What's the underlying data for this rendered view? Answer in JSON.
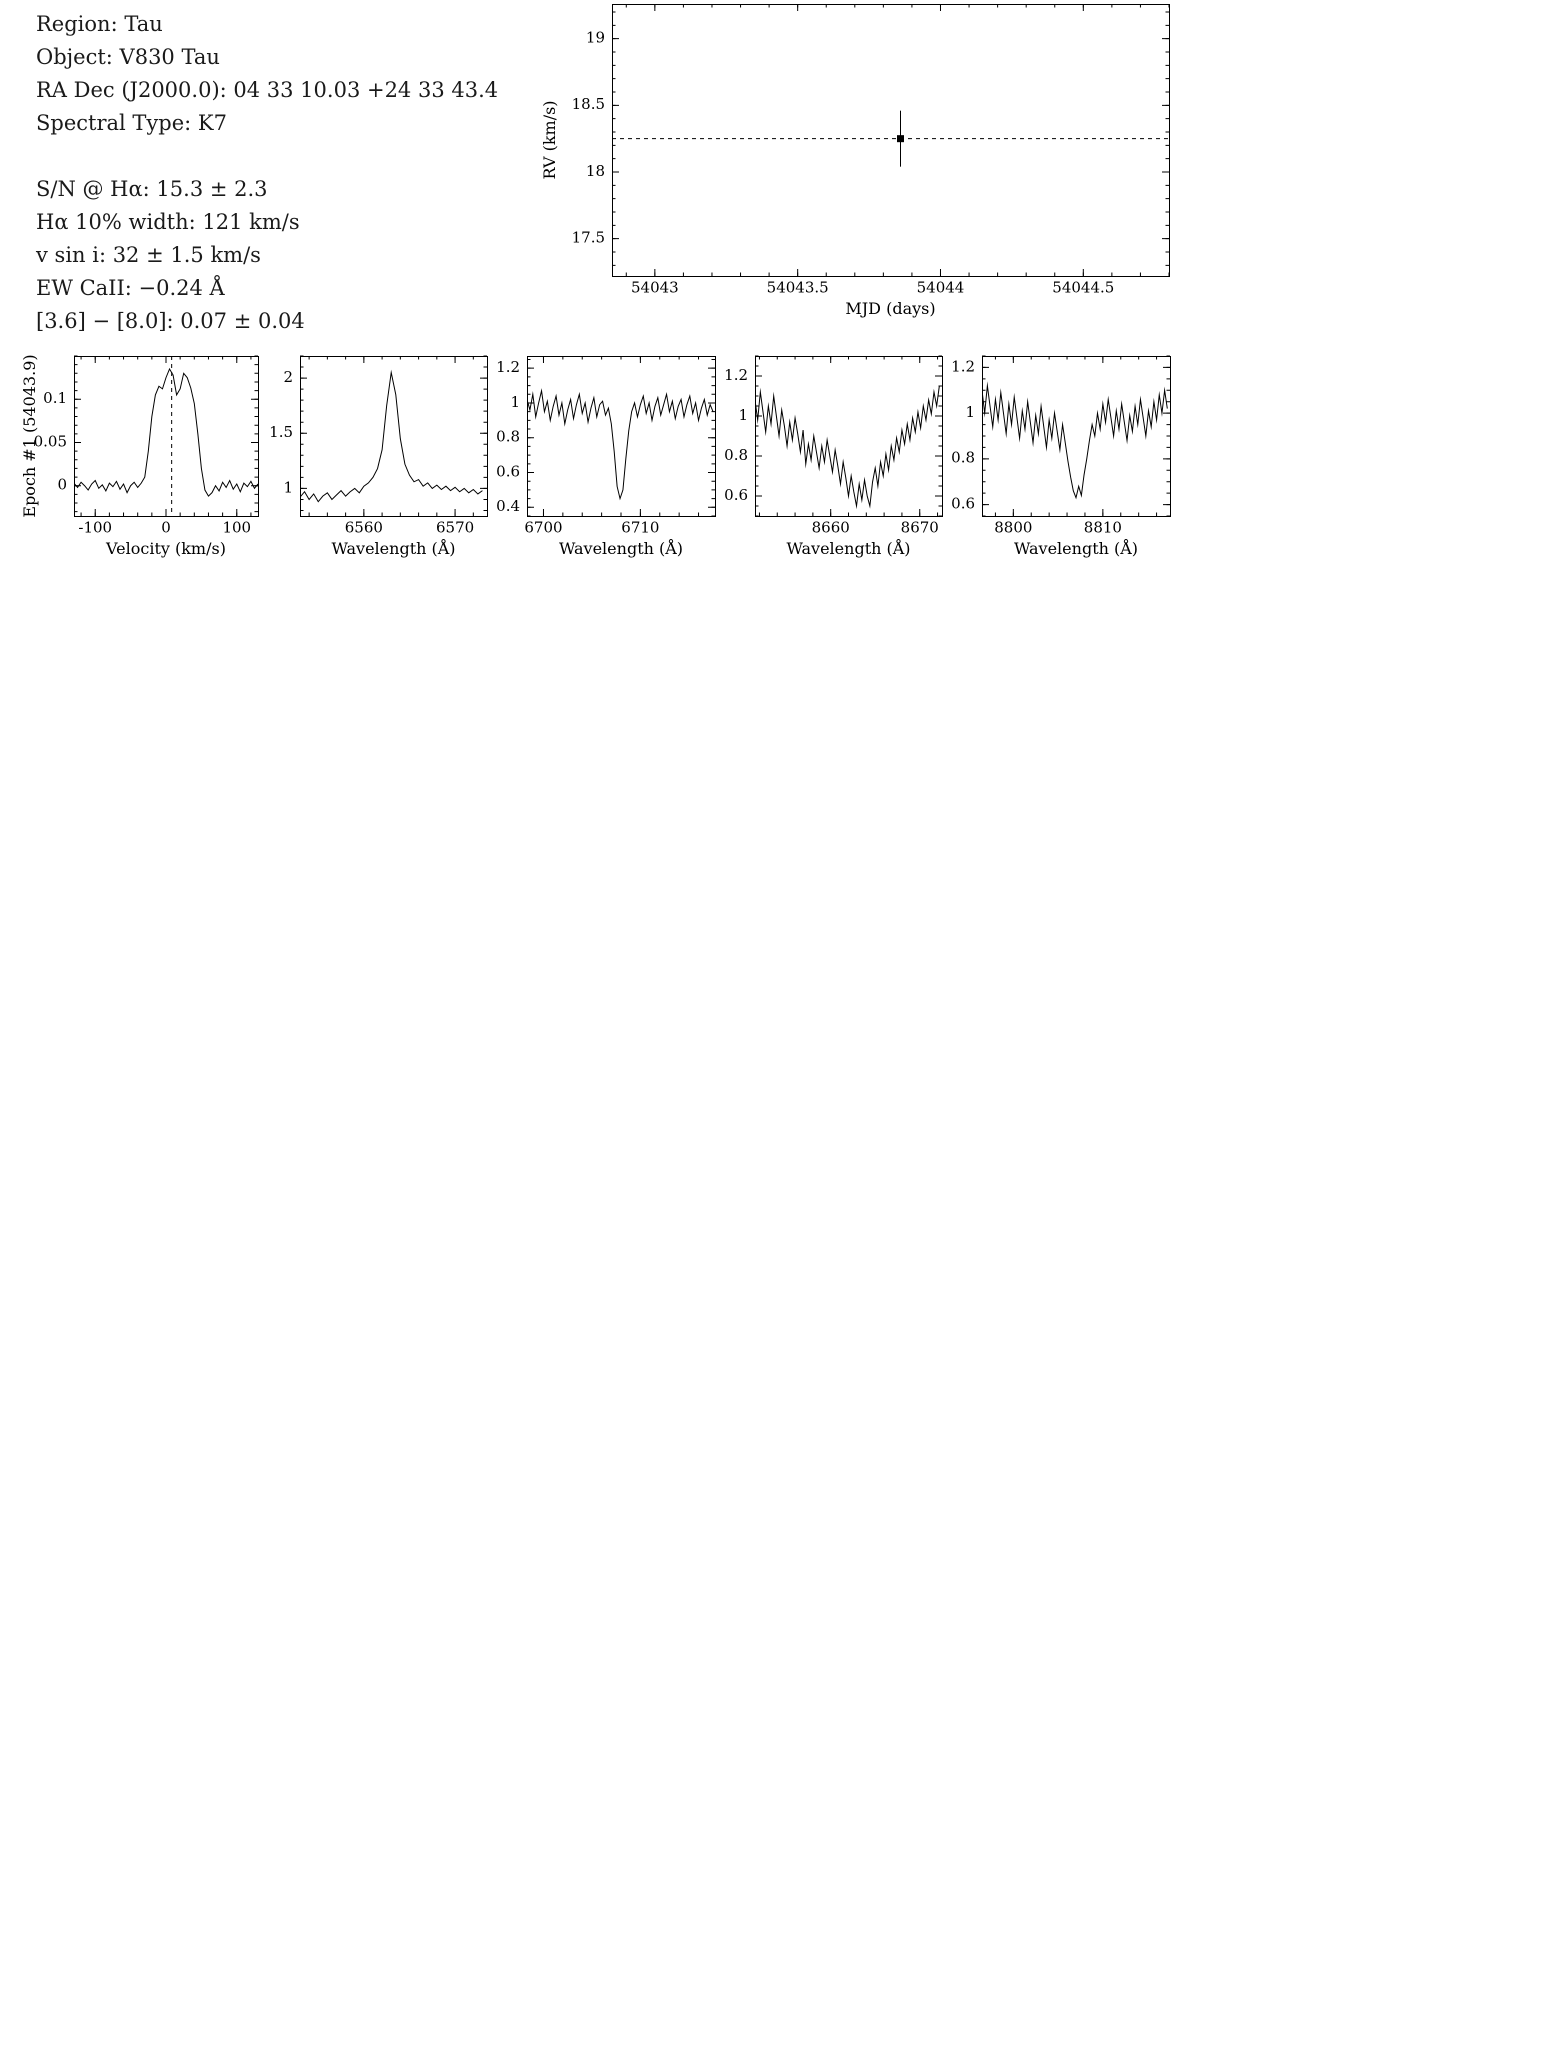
{
  "info": {
    "lines": [
      "Region: Tau",
      "Object: V830 Tau",
      "RA Dec (J2000.0): 04 33 10.03 +24 33 43.4",
      "Spectral Type: K7",
      "S/N @ Hα: 15.3 ± 2.3",
      "Hα 10% width: 121 km/s",
      "v sin i: 32 ± 1.5 km/s",
      "EW CaII: −0.24 Å",
      "[3.6] − [8.0]: 0.07 ± 0.04"
    ]
  },
  "chart_data": [
    {
      "type": "scatter",
      "name": "rv-vs-mjd",
      "title": "",
      "xlabel": "MJD (days)",
      "ylabel": "RV (km/s)",
      "xlim": [
        54042.85,
        54044.8
      ],
      "ylim": [
        17.22,
        19.26
      ],
      "xticks": [
        54043,
        54043.5,
        54044,
        54044.5
      ],
      "yticks": [
        17.5,
        18,
        18.5,
        19
      ],
      "xminor": 0.1,
      "yminor": 0.1,
      "grid": false,
      "hline_dashed": 18.25,
      "points": [
        {
          "x": 54043.86,
          "y": 18.25,
          "yerr": 0.21
        }
      ]
    },
    {
      "type": "line",
      "name": "line-profile-epoch1",
      "title": "",
      "xlabel": "Velocity (km/s)",
      "ylabel": "Epoch #1 (54043.9)",
      "xlim": [
        -130,
        130
      ],
      "ylim": [
        -0.035,
        0.15
      ],
      "xticks": [
        -100,
        0,
        100
      ],
      "yticks": [
        0,
        0.05,
        0.1
      ],
      "xminor": 20,
      "yminor": 0.01,
      "grid": false,
      "vline_dashed": 8,
      "series": [
        {
          "x_start": -130,
          "x_step": 5,
          "y": [
            0.003,
            -0.002,
            0.004,
            0,
            -0.005,
            0.002,
            0.006,
            -0.003,
            0.001,
            -0.006,
            0.003,
            -0.001,
            0.005,
            -0.004,
            0.002,
            -0.008,
            0,
            0.004,
            -0.002,
            0.003,
            0.01,
            0.04,
            0.08,
            0.105,
            0.115,
            0.112,
            0.125,
            0.135,
            0.128,
            0.105,
            0.112,
            0.13,
            0.125,
            0.113,
            0.095,
            0.06,
            0.02,
            -0.005,
            -0.012,
            -0.008,
            0,
            -0.006,
            0.004,
            -0.002,
            0.006,
            -0.004,
            0.002,
            -0.007,
            0.003,
            -0.001,
            0.005,
            -0.003,
            0.002
          ]
        }
      ]
    },
    {
      "type": "line",
      "name": "halpha-spectrum",
      "title": "",
      "xlabel": "Wavelength (Å)",
      "ylabel": "",
      "xlim": [
        6553,
        6573.5
      ],
      "ylim": [
        0.75,
        2.2
      ],
      "xticks": [
        6560,
        6570
      ],
      "yticks": [
        1,
        1.5,
        2
      ],
      "xminor": 2,
      "yminor": 0.1,
      "grid": false,
      "series": [
        {
          "x_start": 6553,
          "x_step": 0.5,
          "y": [
            0.92,
            0.97,
            0.9,
            0.95,
            0.88,
            0.93,
            0.96,
            0.9,
            0.94,
            0.98,
            0.93,
            0.97,
            1.0,
            0.96,
            1.02,
            1.05,
            1.1,
            1.18,
            1.35,
            1.75,
            2.05,
            1.85,
            1.45,
            1.22,
            1.12,
            1.06,
            1.08,
            1.02,
            1.05,
            1.0,
            1.03,
            0.99,
            1.02,
            0.98,
            1.01,
            0.97,
            1.0,
            0.96,
            0.99,
            0.95,
            0.98
          ]
        }
      ]
    },
    {
      "type": "line",
      "name": "li6708-spectrum",
      "title": "",
      "xlabel": "Wavelength (Å)",
      "ylabel": "",
      "xlim": [
        6698.3,
        6717.7
      ],
      "ylim": [
        0.35,
        1.27
      ],
      "xticks": [
        6700,
        6710
      ],
      "yticks": [
        0.4,
        0.6,
        0.8,
        1,
        1.2
      ],
      "xminor": 2,
      "yminor": 0.05,
      "grid": false,
      "series": [
        {
          "x_start": 6698.3,
          "x_step": 0.3,
          "y": [
            1.02,
            0.96,
            1.05,
            0.92,
            1.0,
            1.07,
            0.95,
            1.01,
            0.9,
            0.98,
            1.04,
            0.93,
            1.0,
            0.88,
            0.96,
            1.02,
            0.91,
            0.99,
            1.05,
            0.94,
            1.0,
            0.89,
            0.97,
            1.03,
            0.92,
            0.99,
            1.01,
            0.93,
            0.97,
            0.88,
            0.72,
            0.52,
            0.45,
            0.5,
            0.68,
            0.84,
            0.95,
            1.0,
            0.92,
            0.99,
            1.04,
            0.94,
            1.0,
            0.9,
            0.98,
            1.03,
            0.93,
            0.99,
            1.05,
            0.95,
            1.01,
            0.91,
            0.98,
            1.02,
            0.92,
            0.99,
            1.04,
            0.94,
            1.0,
            0.9,
            0.97,
            1.02,
            0.93,
            0.99,
            0.95
          ]
        }
      ]
    },
    {
      "type": "line",
      "name": "caii8662-spectrum",
      "title": "",
      "xlabel": "Wavelength (Å)",
      "ylabel": "",
      "xlim": [
        8651.5,
        8672.5
      ],
      "ylim": [
        0.5,
        1.3
      ],
      "xticks": [
        8660,
        8670
      ],
      "yticks": [
        0.6,
        0.8,
        1,
        1.2
      ],
      "xminor": 2,
      "yminor": 0.05,
      "grid": false,
      "series": [
        {
          "x_start": 8651.5,
          "x_step": 0.3,
          "y": [
            1.08,
            0.98,
            1.12,
            1.02,
            0.92,
            1.05,
            0.96,
            1.1,
            1.0,
            0.9,
            1.03,
            0.95,
            0.85,
            0.97,
            0.88,
            0.99,
            0.91,
            0.82,
            0.93,
            0.76,
            0.86,
            0.78,
            0.9,
            0.82,
            0.74,
            0.85,
            0.77,
            0.88,
            0.8,
            0.72,
            0.83,
            0.75,
            0.66,
            0.77,
            0.69,
            0.6,
            0.7,
            0.62,
            0.55,
            0.66,
            0.58,
            0.68,
            0.6,
            0.55,
            0.67,
            0.74,
            0.65,
            0.77,
            0.7,
            0.81,
            0.73,
            0.85,
            0.78,
            0.89,
            0.82,
            0.93,
            0.86,
            0.96,
            0.88,
            0.99,
            0.92,
            1.02,
            0.94,
            1.05,
            0.98,
            1.08,
            1.01,
            1.12,
            1.05,
            1.15
          ]
        }
      ]
    },
    {
      "type": "line",
      "name": "region8807-spectrum",
      "title": "",
      "xlabel": "Wavelength (Å)",
      "ylabel": "",
      "xlim": [
        8796.5,
        8817.5
      ],
      "ylim": [
        0.55,
        1.25
      ],
      "xticks": [
        8800,
        8810
      ],
      "yticks": [
        0.6,
        0.8,
        1,
        1.2
      ],
      "xminor": 2,
      "yminor": 0.05,
      "grid": false,
      "series": [
        {
          "x_start": 8796.5,
          "x_step": 0.3,
          "y": [
            1.1,
            1.0,
            1.12,
            1.03,
            0.94,
            1.06,
            0.97,
            1.09,
            1.0,
            0.91,
            1.04,
            0.95,
            1.07,
            0.98,
            0.89,
            1.01,
            0.93,
            1.05,
            0.96,
            0.87,
            0.99,
            0.91,
            1.03,
            0.94,
            0.85,
            0.97,
            0.89,
            1.0,
            0.92,
            0.84,
            0.95,
            0.87,
            0.79,
            0.72,
            0.66,
            0.63,
            0.68,
            0.64,
            0.73,
            0.8,
            0.88,
            0.95,
            0.9,
            1.0,
            0.93,
            1.04,
            0.96,
            1.06,
            0.98,
            0.9,
            1.01,
            0.93,
            1.04,
            0.96,
            0.88,
            0.99,
            0.92,
            1.03,
            0.95,
            1.06,
            0.98,
            0.9,
            1.01,
            0.94,
            1.05,
            0.97,
            1.08,
            1.0,
            1.1,
            1.02
          ]
        }
      ]
    }
  ]
}
